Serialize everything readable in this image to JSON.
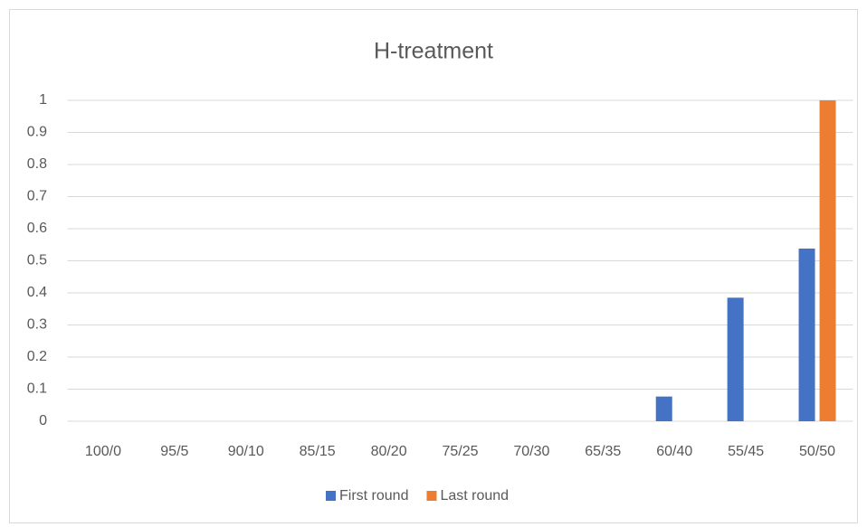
{
  "chart_data": {
    "type": "bar",
    "title": "H-treatment",
    "categories": [
      "100/0",
      "95/5",
      "90/10",
      "85/15",
      "80/20",
      "75/25",
      "70/30",
      "65/35",
      "60/40",
      "55/45",
      "50/50"
    ],
    "series": [
      {
        "name": "First round",
        "color": "#4472c4",
        "values": [
          0,
          0,
          0,
          0,
          0,
          0,
          0,
          0,
          0.077,
          0.385,
          0.538
        ]
      },
      {
        "name": "Last round",
        "color": "#ed7d31",
        "values": [
          0,
          0,
          0,
          0,
          0,
          0,
          0,
          0,
          0,
          0,
          1
        ]
      }
    ],
    "ylim": [
      0,
      1
    ],
    "yticks": [
      0,
      0.1,
      0.2,
      0.3,
      0.4,
      0.5,
      0.6,
      0.7,
      0.8,
      0.9,
      1
    ],
    "grid": true,
    "legend": "bottom"
  }
}
